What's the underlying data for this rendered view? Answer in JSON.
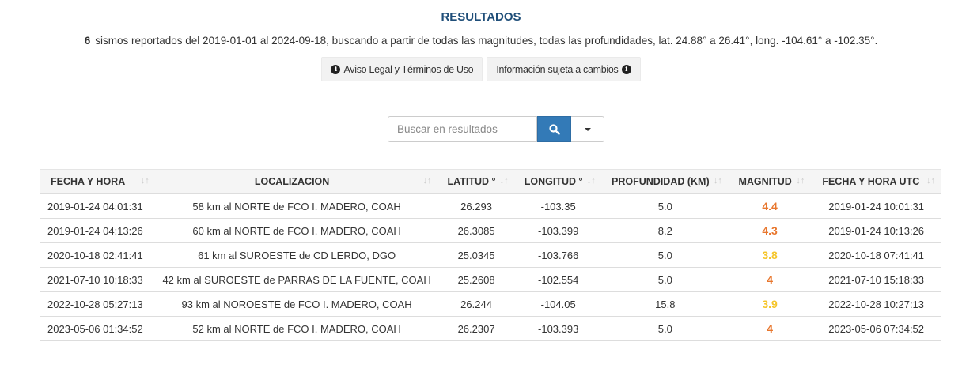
{
  "title": "RESULTADOS",
  "summary": {
    "count": "6",
    "text": "sismos reportados del 2019-01-01 al 2024-09-18, buscando a partir de todas las magnitudes, todas las profundidades, lat. 24.88° a 26.41°, long. -104.61° a -102.35°."
  },
  "buttons": {
    "legal": "Aviso Legal y Términos de Uso",
    "info": "Información sujeta a cambios"
  },
  "search": {
    "placeholder": "Buscar en resultados",
    "icon": "search-icon",
    "accent": "#337ab7"
  },
  "colors": {
    "mag_orange": "#e8772e",
    "mag_yellow": "#f5c52a"
  },
  "table": {
    "headers": [
      "FECHA Y HORA",
      "LOCALIZACION",
      "LATITUD °",
      "LONGITUD °",
      "PROFUNDIDAD (KM)",
      "MAGNITUD",
      "FECHA Y HORA UTC"
    ],
    "rows": [
      {
        "fecha": "2019-01-24  04:01:31",
        "loc": "58 km al NORTE de FCO I. MADERO, COAH",
        "lat": "26.293",
        "lon": "-103.35",
        "prof": "5.0",
        "mag": "4.4",
        "magcolor": "#e8772e",
        "utc": "2019-01-24  10:01:31"
      },
      {
        "fecha": "2019-01-24  04:13:26",
        "loc": "60 km al NORTE de FCO I. MADERO, COAH",
        "lat": "26.3085",
        "lon": "-103.399",
        "prof": "8.2",
        "mag": "4.3",
        "magcolor": "#e8772e",
        "utc": "2019-01-24  10:13:26"
      },
      {
        "fecha": "2020-10-18  02:41:41",
        "loc": "61 km al SUROESTE de CD LERDO, DGO",
        "lat": "25.0345",
        "lon": "-103.766",
        "prof": "5.0",
        "mag": "3.8",
        "magcolor": "#f5c52a",
        "utc": "2020-10-18  07:41:41"
      },
      {
        "fecha": "2021-07-10  10:18:33",
        "loc": "42 km al SUROESTE de PARRAS DE LA FUENTE, COAH",
        "lat": "25.2608",
        "lon": "-102.554",
        "prof": "5.0",
        "mag": "4",
        "magcolor": "#e8772e",
        "utc": "2021-07-10  15:18:33"
      },
      {
        "fecha": "2022-10-28  05:27:13",
        "loc": "93 km al NOROESTE de FCO I. MADERO, COAH",
        "lat": "26.244",
        "lon": "-104.05",
        "prof": "15.8",
        "mag": "3.9",
        "magcolor": "#f5c52a",
        "utc": "2022-10-28  10:27:13"
      },
      {
        "fecha": "2023-05-06  01:34:52",
        "loc": "52 km al NORTE de FCO I. MADERO, COAH",
        "lat": "26.2307",
        "lon": "-103.393",
        "prof": "5.0",
        "mag": "4",
        "magcolor": "#e8772e",
        "utc": "2023-05-06  07:34:52"
      }
    ]
  }
}
